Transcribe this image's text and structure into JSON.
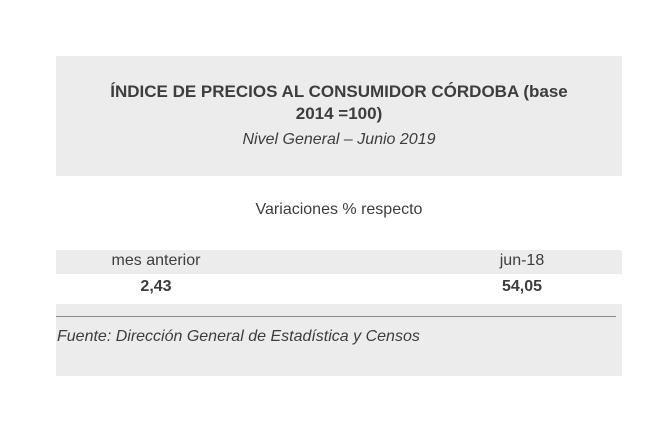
{
  "title": {
    "line1": "ÍNDICE DE PRECIOS AL CONSUMIDOR CÓRDOBA (base",
    "line2": "2014 =100)",
    "subtitle": "Nivel General – Junio 2019"
  },
  "variaciones_label": "Variaciones % respecto",
  "table": {
    "headers": [
      "mes anterior",
      "jun-18"
    ],
    "values": [
      "2,43",
      "54,05"
    ]
  },
  "source": "Fuente: Dirección General de Estadística y Censos"
}
